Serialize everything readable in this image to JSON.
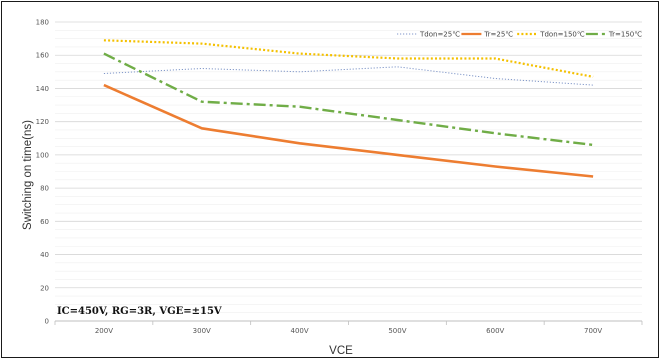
{
  "chart_data": {
    "type": "line",
    "categories": [
      "200V",
      "300V",
      "400V",
      "500V",
      "600V",
      "700V"
    ],
    "series": [
      {
        "name": "Tdon=25℃",
        "values": [
          149,
          152,
          150,
          153,
          146,
          142
        ],
        "color": "#7f96c8",
        "dash": "1.2 1.8",
        "width": 1
      },
      {
        "name": "Tr=25℃",
        "values": [
          142,
          116,
          107,
          100,
          93,
          87
        ],
        "color": "#ed7d31",
        "dash": "",
        "width": 2.6
      },
      {
        "name": "Tdon=150℃",
        "values": [
          169,
          167,
          161,
          158,
          158,
          147
        ],
        "color": "#f4c000",
        "dash": "2 2.2",
        "width": 2.2
      },
      {
        "name": "Tr=150℃",
        "values": [
          161,
          132,
          129,
          121,
          113,
          106
        ],
        "color": "#70ad47",
        "dash": "12 4 3 4",
        "width": 2.4
      }
    ],
    "xlabel": "VCE",
    "ylabel": "Switching on time(ns)",
    "ylim": [
      0,
      180
    ],
    "yticks": [
      0,
      20,
      40,
      60,
      80,
      100,
      120,
      140,
      160,
      180
    ],
    "grid": true,
    "legend": "top-right",
    "annotation": "IC=450V, RG=3R, VGE=±15V"
  }
}
